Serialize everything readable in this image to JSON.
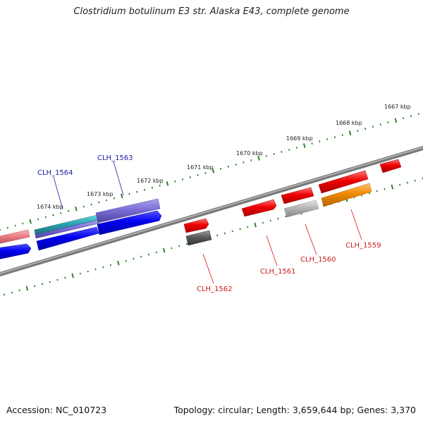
{
  "title": "Clostridium botulinum E3 str. Alaska E43, complete genome",
  "footer": {
    "accession": "Accession: NC_010723",
    "stats": "Topology: circular; Length: 3,659,644 bp; Genes: 3,370"
  },
  "kbp_labels": [
    "1667 kbp",
    "1668 kbp",
    "1669 kbp",
    "1670 kbp",
    "1671 kbp",
    "1672 kbp",
    "1673 kbp",
    "1674 kbp"
  ],
  "gene_labels": [
    "CLH_1564",
    "CLH_1563",
    "CLH_1562",
    "CLH_1561",
    "CLH_1560",
    "CLH_1559"
  ],
  "colors": {
    "backbone": "#8c8c8c",
    "tick": "#1a7a1a",
    "forward_label": "#1a1aa0",
    "reverse_label": "#cc1a1a",
    "blue": "#0000ee",
    "purple": "#7b6fd6",
    "teal": "#2aa3b0",
    "salmon": "#ec7f86",
    "red": "#ee0000",
    "grey": "#b5b5b5",
    "darkgrey": "#5a5a5a",
    "orange": "#f08a00"
  }
}
